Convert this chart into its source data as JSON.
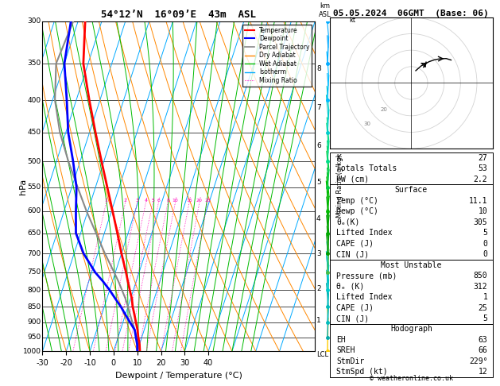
{
  "title_left": "54°12’N  16°09’E  43m  ASL",
  "title_right": "05.05.2024  06GMT  (Base: 06)",
  "xlabel": "Dewpoint / Temperature (°C)",
  "ylabel_left": "hPa",
  "p_ticks": [
    300,
    350,
    400,
    450,
    500,
    550,
    600,
    650,
    700,
    750,
    800,
    850,
    900,
    950,
    1000
  ],
  "temp_ticks": [
    -30,
    -20,
    -10,
    0,
    10,
    20,
    30,
    40
  ],
  "t_min": -40,
  "t_max": 40,
  "p_min": 300,
  "p_max": 1000,
  "skew_factor": 45.0,
  "background_color": "#ffffff",
  "isotherm_color": "#00aaff",
  "dry_adiabat_color": "#ff8800",
  "wet_adiabat_color": "#00bb00",
  "mixing_ratio_color": "#ff00bb",
  "temperature_color": "#ff0000",
  "dewpoint_color": "#0000ff",
  "parcel_color": "#888888",
  "km_labels": [
    1,
    2,
    3,
    4,
    5,
    6,
    7,
    8
  ],
  "km_pressures": [
    895,
    795,
    700,
    616,
    540,
    472,
    411,
    357
  ],
  "mixing_ratio_values": [
    1,
    2,
    3,
    4,
    5,
    6,
    8,
    10,
    15,
    20,
    25
  ],
  "mixing_ratio_labels": [
    "1",
    "2",
    "3",
    "4",
    "5",
    "6",
    "8",
    "10",
    "15",
    "20",
    "25"
  ],
  "mixing_ratio_label_p": 582,
  "stats": {
    "K": 27,
    "Totals_Totals": 53,
    "PW_cm": 2.2,
    "Surface_Temp": 11.1,
    "Surface_Dewp": 10,
    "Surface_theta_e": 305,
    "Lifted_Index": 5,
    "CAPE": 0,
    "CIN": 0,
    "MU_Pressure": 850,
    "MU_theta_e": 312,
    "MU_LI": 1,
    "MU_CAPE": 25,
    "MU_CIN": 5,
    "EH": 63,
    "SREH": 66,
    "StmDir": 229,
    "StmSpd": 12
  },
  "temp_profile": {
    "pressure": [
      1000,
      975,
      950,
      925,
      900,
      875,
      850,
      825,
      800,
      775,
      750,
      700,
      650,
      600,
      550,
      500,
      450,
      400,
      350,
      300
    ],
    "temperature": [
      11.1,
      10.0,
      8.5,
      7.2,
      5.5,
      3.8,
      2.0,
      0.5,
      -1.5,
      -3.5,
      -5.5,
      -10.0,
      -14.5,
      -19.5,
      -25.0,
      -31.0,
      -37.5,
      -44.5,
      -52.0,
      -57.0
    ]
  },
  "dewp_profile": {
    "pressure": [
      1000,
      975,
      950,
      925,
      900,
      875,
      850,
      825,
      800,
      775,
      750,
      700,
      650,
      600,
      550,
      500,
      450,
      400,
      350,
      300
    ],
    "temperature": [
      10.0,
      9.0,
      7.5,
      6.0,
      3.0,
      0.0,
      -3.0,
      -6.5,
      -10.0,
      -14.0,
      -18.5,
      -26.0,
      -32.0,
      -35.0,
      -38.0,
      -43.0,
      -49.0,
      -54.0,
      -60.0,
      -63.0
    ]
  },
  "parcel_profile": {
    "pressure": [
      1000,
      975,
      950,
      925,
      900,
      875,
      850,
      825,
      800,
      775,
      750,
      700,
      650,
      600,
      550,
      500,
      450,
      400,
      350,
      300
    ],
    "temperature": [
      11.1,
      9.5,
      7.8,
      6.0,
      4.0,
      2.0,
      0.0,
      -2.2,
      -4.8,
      -7.5,
      -10.5,
      -17.0,
      -23.5,
      -30.5,
      -37.5,
      -45.0,
      -52.5,
      -59.0,
      -63.5,
      -62.0
    ]
  },
  "wind_pressures": [
    1000,
    950,
    900,
    850,
    800,
    750,
    700,
    650,
    600,
    550,
    500,
    450,
    400,
    350,
    300
  ],
  "wind_speeds": [
    8,
    12,
    14,
    17,
    20,
    23,
    26,
    28,
    30,
    28,
    25,
    22,
    18,
    15,
    12
  ],
  "wind_dirs": [
    200,
    210,
    215,
    220,
    225,
    230,
    235,
    240,
    245,
    240,
    235,
    230,
    225,
    220,
    215
  ],
  "wind_colors": [
    "#ffcc00",
    "#00aaaa",
    "#00bbbb",
    "#00bbbb",
    "#00cccc",
    "#44bb44",
    "#009900",
    "#00aa00",
    "#00bb00",
    "#00cc44",
    "#00dd88",
    "#00cccc",
    "#00bbff",
    "#00aaff",
    "#00aaff"
  ]
}
